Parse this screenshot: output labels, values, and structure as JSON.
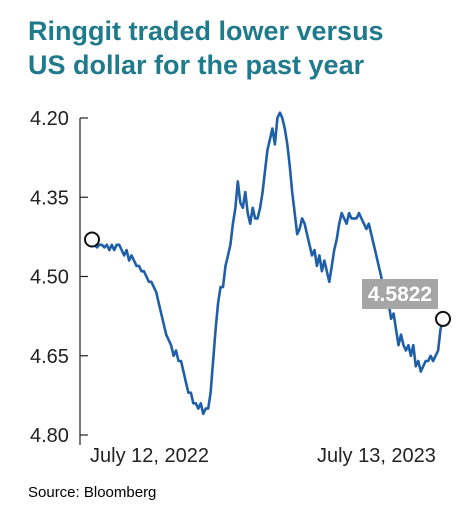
{
  "title_line1": "Ringgit traded lower versus",
  "title_line2": "US dollar for the past year",
  "source": "Source: Bloomberg",
  "chart_data": {
    "type": "line",
    "title": "Ringgit traded lower versus US dollar for the past year",
    "xlabel": "",
    "ylabel": "",
    "y_inverted": true,
    "ylim": [
      4.8,
      4.2
    ],
    "y_ticks": [
      "4.20",
      "4.35",
      "4.50",
      "4.65",
      "4.80"
    ],
    "y_tick_values": [
      4.2,
      4.35,
      4.5,
      4.65,
      4.8
    ],
    "x_tick_labels": [
      "July 12, 2022",
      "July 13, 2023"
    ],
    "xlim": [
      0,
      1
    ],
    "x_tick_positions": [
      0.19,
      0.81
    ],
    "grid": false,
    "line_color": "#1f5fa8",
    "callout": {
      "label": "4.5822",
      "value": 4.5822,
      "bg_color": "#a6a6a6"
    },
    "endpoint_markers": true,
    "series": [
      {
        "values": [
          4.43,
          4.44,
          4.445,
          4.44,
          4.44,
          4.445,
          4.44,
          4.45,
          4.44,
          4.45,
          4.44,
          4.44,
          4.45,
          4.46,
          4.45,
          4.47,
          4.46,
          4.47,
          4.48,
          4.48,
          4.49,
          4.49,
          4.5,
          4.51,
          4.51,
          4.52,
          4.53,
          4.55,
          4.57,
          4.59,
          4.61,
          4.62,
          4.63,
          4.65,
          4.64,
          4.66,
          4.66,
          4.68,
          4.7,
          4.72,
          4.72,
          4.74,
          4.74,
          4.75,
          4.74,
          4.76,
          4.75,
          4.75,
          4.72,
          4.66,
          4.6,
          4.55,
          4.52,
          4.52,
          4.48,
          4.46,
          4.44,
          4.4,
          4.37,
          4.32,
          4.36,
          4.37,
          4.34,
          4.38,
          4.4,
          4.37,
          4.39,
          4.39,
          4.37,
          4.34,
          4.3,
          4.26,
          4.24,
          4.22,
          4.25,
          4.2,
          4.19,
          4.2,
          4.22,
          4.25,
          4.29,
          4.34,
          4.38,
          4.42,
          4.41,
          4.39,
          4.4,
          4.42,
          4.44,
          4.46,
          4.45,
          4.48,
          4.46,
          4.49,
          4.47,
          4.49,
          4.51,
          4.48,
          4.45,
          4.43,
          4.4,
          4.38,
          4.39,
          4.4,
          4.38,
          4.39,
          4.39,
          4.39,
          4.38,
          4.39,
          4.4,
          4.41,
          4.4,
          4.42,
          4.44,
          4.46,
          4.48,
          4.5,
          4.54,
          4.52,
          4.55,
          4.58,
          4.57,
          4.6,
          4.63,
          4.61,
          4.63,
          4.64,
          4.63,
          4.65,
          4.63,
          4.67,
          4.66,
          4.68,
          4.67,
          4.66,
          4.66,
          4.65,
          4.66,
          4.65,
          4.64,
          4.6,
          4.5822
        ]
      }
    ]
  }
}
